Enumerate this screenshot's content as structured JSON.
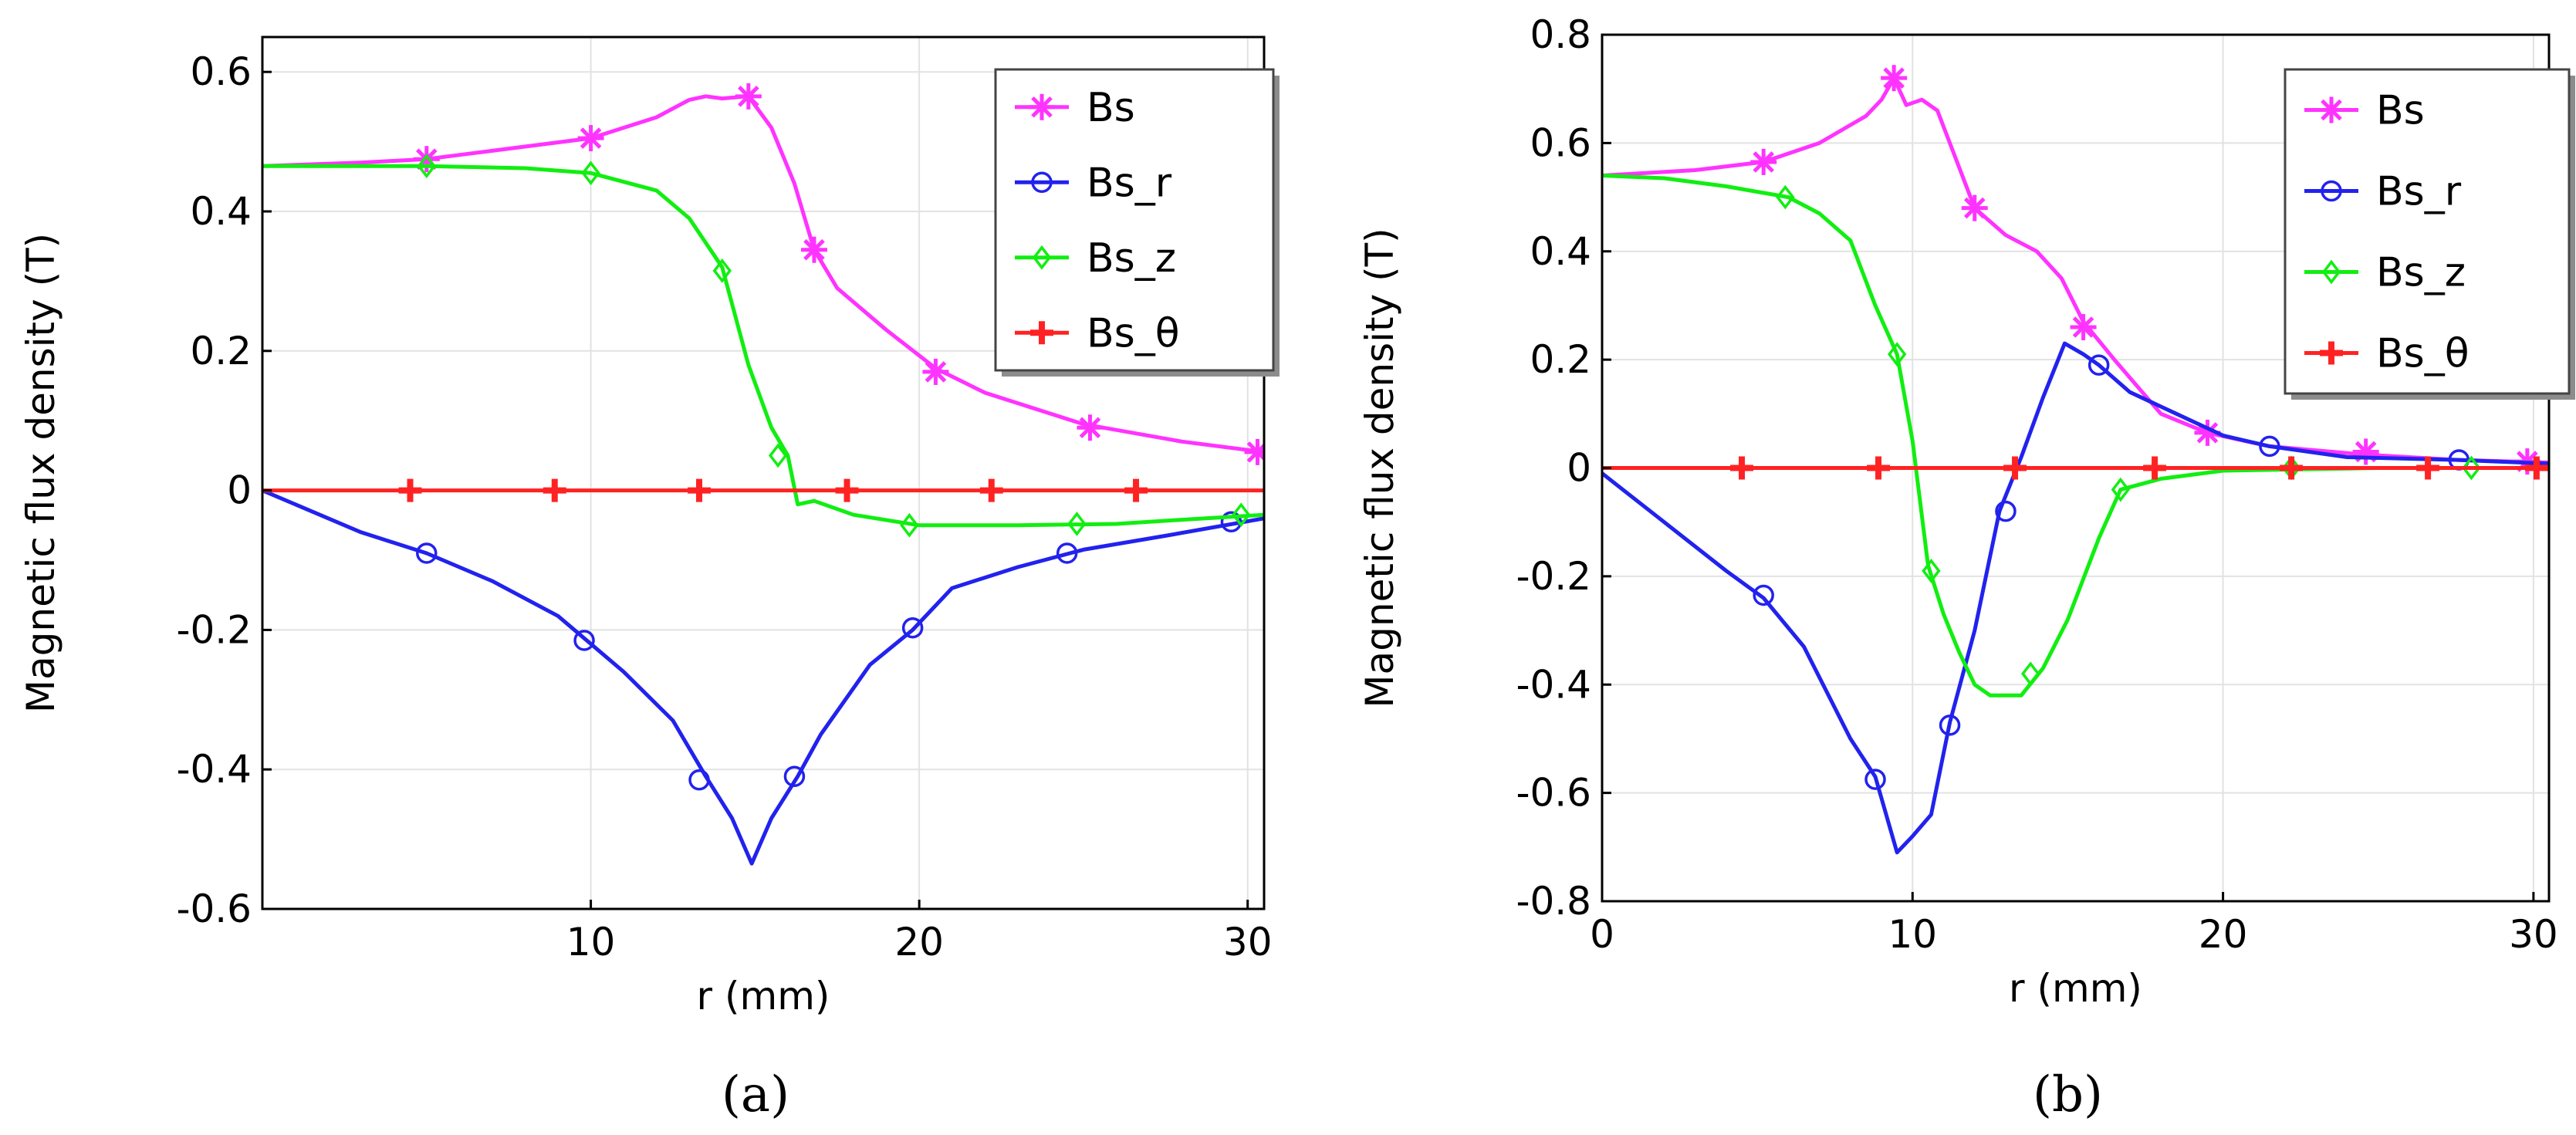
{
  "chart_data": [
    {
      "type": "line",
      "panel_label": "(a)",
      "xlabel": "r (mm)",
      "ylabel": "Magnetic flux density (T)",
      "xlim": [
        0,
        30.5
      ],
      "ylim": [
        -0.6,
        0.65
      ],
      "xticks": [
        10,
        20,
        30
      ],
      "xtick_labels": [
        "10",
        "20",
        "30"
      ],
      "yticks": [
        -0.6,
        -0.4,
        -0.2,
        0,
        0.2,
        0.4,
        0.6
      ],
      "ytick_labels": [
        "-0.6",
        "-0.4",
        "-0.2",
        "0",
        "0.2",
        "0.4",
        "0.6"
      ],
      "grid": true,
      "legend": "top-right",
      "series": [
        {
          "name": "Bs",
          "color": "#ff33ff",
          "marker": "asterisk",
          "x": [
            0,
            3,
            5,
            7,
            10,
            12,
            13,
            13.5,
            14,
            14.8,
            15.5,
            16.2,
            16.8,
            17.5,
            19,
            20.5,
            22,
            25,
            28,
            30.5
          ],
          "y": [
            0.465,
            0.47,
            0.475,
            0.487,
            0.505,
            0.535,
            0.56,
            0.565,
            0.562,
            0.565,
            0.52,
            0.44,
            0.345,
            0.29,
            0.23,
            0.175,
            0.14,
            0.095,
            0.07,
            0.055
          ],
          "marker_x": [
            5,
            10,
            14.8,
            16.8,
            20.5,
            25.2,
            30.3
          ],
          "marker_y": [
            0.475,
            0.505,
            0.565,
            0.345,
            0.17,
            0.09,
            0.055
          ]
        },
        {
          "name": "Bs_r",
          "color": "#2222ee",
          "marker": "circle",
          "x": [
            0,
            3,
            5,
            7,
            9,
            11,
            12.5,
            13.5,
            14.3,
            14.9,
            15.5,
            16.3,
            17,
            18.5,
            19.8,
            21,
            23,
            25,
            27.5,
            30.5
          ],
          "y": [
            0,
            -0.06,
            -0.09,
            -0.13,
            -0.18,
            -0.26,
            -0.33,
            -0.41,
            -0.47,
            -0.535,
            -0.47,
            -0.41,
            -0.35,
            -0.25,
            -0.2,
            -0.14,
            -0.11,
            -0.085,
            -0.065,
            -0.04
          ],
          "marker_x": [
            5,
            9.8,
            13.3,
            16.2,
            19.8,
            24.5,
            29.5
          ],
          "marker_y": [
            -0.09,
            -0.215,
            -0.415,
            -0.41,
            -0.197,
            -0.09,
            -0.045
          ]
        },
        {
          "name": "Bs_z",
          "color": "#11ee11",
          "marker": "diamond",
          "x": [
            0,
            5,
            8,
            10,
            12,
            13,
            14,
            14.8,
            15.5,
            16,
            16.3,
            16.8,
            18,
            20,
            23,
            26,
            28,
            30.5
          ],
          "y": [
            0.465,
            0.465,
            0.462,
            0.455,
            0.43,
            0.39,
            0.32,
            0.18,
            0.09,
            0.05,
            -0.02,
            -0.015,
            -0.035,
            -0.05,
            -0.05,
            -0.048,
            -0.042,
            -0.035
          ],
          "marker_x": [
            5,
            10,
            14,
            15.7,
            19.7,
            24.8,
            29.8
          ],
          "marker_y": [
            0.465,
            0.455,
            0.315,
            0.05,
            -0.05,
            -0.048,
            -0.035
          ]
        },
        {
          "name": "Bs_θ",
          "color": "#ff2222",
          "marker": "plus",
          "x": [
            0,
            30.5
          ],
          "y": [
            0,
            0
          ],
          "marker_x": [
            4.5,
            8.9,
            13.3,
            17.8,
            22.2,
            26.6
          ],
          "marker_y": [
            0,
            0,
            0,
            0,
            0,
            0
          ]
        }
      ]
    },
    {
      "type": "line",
      "panel_label": "(b)",
      "xlabel": "r (mm)",
      "ylabel": "Magnetic flux density (T)",
      "xlim": [
        0,
        30.5
      ],
      "ylim": [
        -0.8,
        0.8
      ],
      "xticks": [
        0,
        10,
        20,
        30
      ],
      "xtick_labels": [
        "0",
        "10",
        "20",
        "30"
      ],
      "yticks": [
        -0.8,
        -0.6,
        -0.4,
        -0.2,
        0,
        0.2,
        0.4,
        0.6,
        0.8
      ],
      "ytick_labels": [
        "-0.8",
        "-0.6",
        "-0.4",
        "-0.2",
        "0",
        "0.2",
        "0.4",
        "0.6",
        "0.8"
      ],
      "grid": true,
      "legend": "top-right",
      "series": [
        {
          "name": "Bs",
          "color": "#ff33ff",
          "marker": "asterisk",
          "x": [
            0,
            3,
            5.2,
            7,
            8.5,
            9,
            9.4,
            9.8,
            10.3,
            10.8,
            11.2,
            12,
            13,
            14,
            14.8,
            15.5,
            16.5,
            18,
            19.5,
            21.5,
            24.5,
            27.5,
            30.5
          ],
          "y": [
            0.54,
            0.55,
            0.565,
            0.6,
            0.65,
            0.68,
            0.72,
            0.67,
            0.68,
            0.66,
            0.6,
            0.48,
            0.43,
            0.4,
            0.35,
            0.27,
            0.2,
            0.1,
            0.065,
            0.04,
            0.025,
            0.015,
            0.01
          ],
          "marker_x": [
            5.2,
            9.4,
            12,
            15.5,
            19.5,
            24.6,
            29.8
          ],
          "marker_y": [
            0.565,
            0.72,
            0.48,
            0.26,
            0.065,
            0.03,
            0.012
          ]
        },
        {
          "name": "Bs_r",
          "color": "#2222ee",
          "marker": "circle",
          "x": [
            0,
            2,
            4,
            5.2,
            6.5,
            8,
            8.8,
            9.5,
            10,
            10.6,
            11.2,
            12,
            12.8,
            13.5,
            14.2,
            14.9,
            15.5,
            16,
            17,
            18.5,
            20,
            21.5,
            24,
            27.5,
            30.5
          ],
          "y": [
            -0.01,
            -0.1,
            -0.19,
            -0.24,
            -0.33,
            -0.5,
            -0.57,
            -0.71,
            -0.68,
            -0.64,
            -0.47,
            -0.3,
            -0.08,
            0.02,
            0.13,
            0.23,
            0.21,
            0.19,
            0.14,
            0.1,
            0.06,
            0.04,
            0.02,
            0.015,
            0.008
          ],
          "marker_x": [
            5.2,
            8.8,
            11.2,
            13,
            16,
            21.5,
            27.6
          ],
          "marker_y": [
            -0.235,
            -0.575,
            -0.475,
            -0.08,
            0.19,
            0.04,
            0.015
          ]
        },
        {
          "name": "Bs_z",
          "color": "#11ee11",
          "marker": "diamond",
          "x": [
            0,
            2,
            4,
            6,
            7,
            8,
            8.8,
            9.5,
            10,
            10.5,
            11,
            11.5,
            12,
            12.5,
            13.5,
            14.2,
            15,
            16,
            16.7,
            18,
            20,
            25,
            30.5
          ],
          "y": [
            0.54,
            0.535,
            0.52,
            0.5,
            0.47,
            0.42,
            0.3,
            0.21,
            0.05,
            -0.18,
            -0.27,
            -0.34,
            -0.4,
            -0.42,
            -0.42,
            -0.37,
            -0.28,
            -0.13,
            -0.04,
            -0.02,
            -0.005,
            0,
            0
          ],
          "marker_x": [
            5.9,
            9.5,
            10.6,
            13.8,
            16.7,
            22.2,
            28
          ],
          "marker_y": [
            0.5,
            0.21,
            -0.19,
            -0.38,
            -0.04,
            0,
            0
          ]
        },
        {
          "name": "Bs_θ",
          "color": "#ff2222",
          "marker": "plus",
          "x": [
            0,
            30.5
          ],
          "y": [
            0,
            0
          ],
          "marker_x": [
            4.5,
            8.9,
            13.3,
            17.8,
            22.2,
            26.6,
            30.1
          ],
          "marker_y": [
            0,
            0,
            0,
            0,
            0,
            0,
            0
          ]
        }
      ]
    }
  ]
}
